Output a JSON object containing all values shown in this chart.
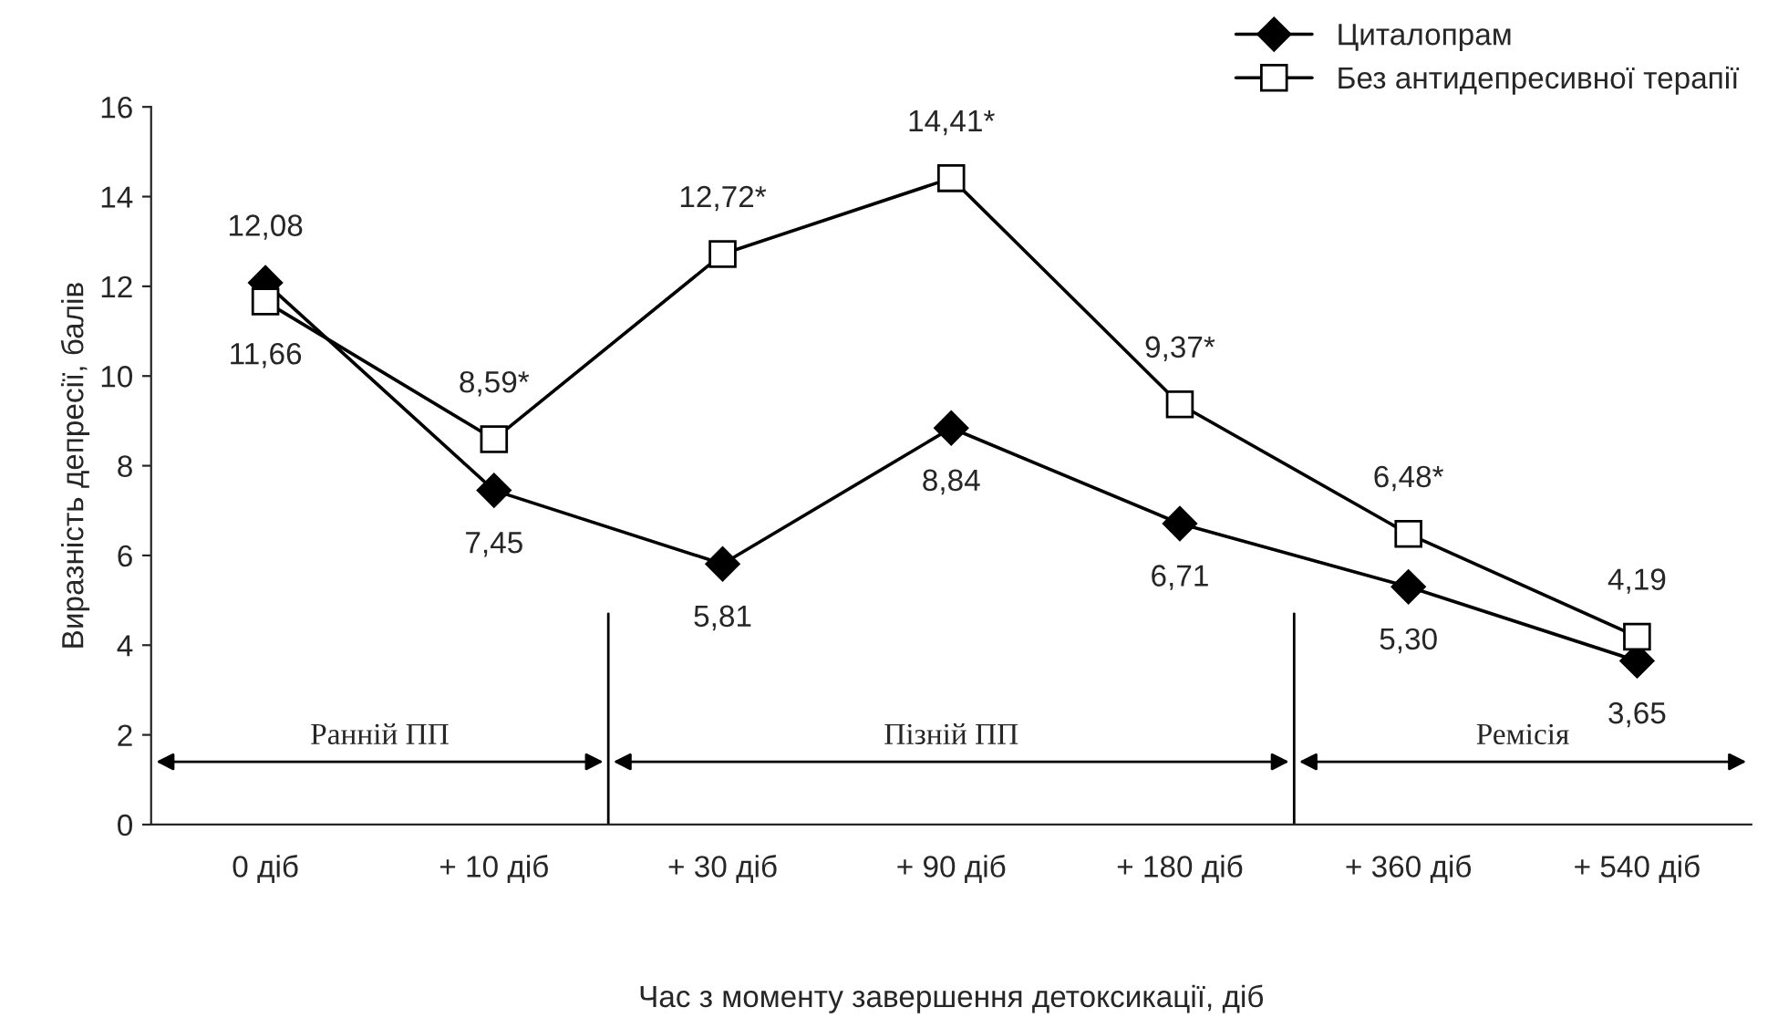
{
  "chart_data": {
    "type": "line",
    "xlabel": "Час з моменту завершення детоксикації, діб",
    "ylabel": "Виразність депресії, балів",
    "categories": [
      "0 діб",
      "+ 10 діб",
      "+ 30 діб",
      "+ 90 діб",
      "+ 180 діб",
      "+ 360 діб",
      "+ 540 діб"
    ],
    "series": [
      {
        "name": "Циталопрам",
        "color": "#000000",
        "marker": "diamond",
        "values": [
          12.08,
          7.45,
          5.81,
          8.84,
          6.71,
          5.3,
          3.65
        ],
        "value_labels": [
          "12,08",
          "7,45",
          "5,81",
          "8,84",
          "6,71",
          "5,30",
          "3,65"
        ]
      },
      {
        "name": "Без антидепресивної терапії",
        "color": "#000000",
        "marker": "square",
        "values": [
          11.66,
          8.59,
          12.72,
          14.41,
          9.37,
          6.48,
          4.19
        ],
        "value_labels": [
          "11,66",
          "8,59*",
          "12,72*",
          "14,41*",
          "9,37*",
          "6,48*",
          "4,19"
        ]
      }
    ],
    "ylim": [
      0,
      16
    ],
    "yticks": [
      0,
      2,
      4,
      6,
      8,
      10,
      12,
      14,
      16
    ],
    "grid": false,
    "legend": "top right",
    "line_style": "solid",
    "annotations": [
      "Ранній ПП",
      "Пізній ПП",
      "Ремісія"
    ]
  }
}
